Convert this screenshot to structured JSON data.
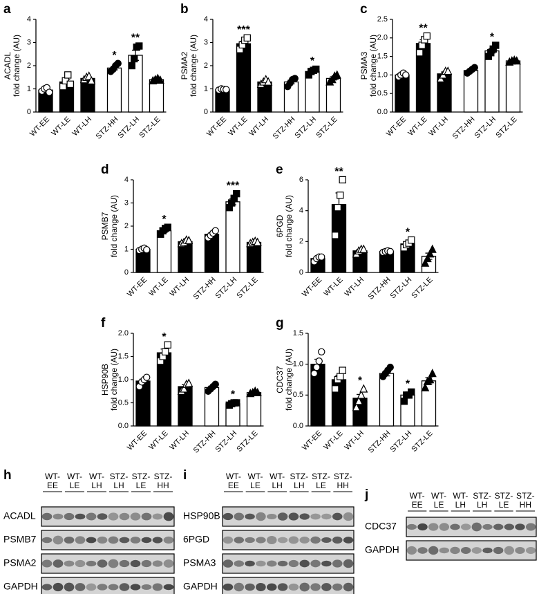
{
  "chart_data": [
    {
      "type": "bar",
      "panel": "a",
      "ylabel": [
        "ACADL",
        "fold change (AU)"
      ],
      "categories": [
        "WT-EE",
        "WT-LE",
        "WT-LH",
        "STZ-HH",
        "STZ-LH",
        "STZ-LE"
      ],
      "colors": [
        "#000000",
        "#000000",
        "#000000",
        "#ffffff",
        "#ffffff",
        "#ffffff"
      ],
      "values": [
        0.95,
        1.3,
        1.45,
        1.9,
        2.45,
        1.4
      ],
      "errors": [
        0.05,
        0.11,
        0.05,
        0.08,
        0.22,
        0.02
      ],
      "points": [
        [
          0.9,
          1.0,
          1.05,
          0.85
        ],
        [
          1.1,
          1.35,
          1.6,
          1.2
        ],
        [
          1.4,
          1.5,
          1.55,
          1.35
        ],
        [
          1.75,
          1.85,
          2.0,
          2.1
        ],
        [
          2.0,
          2.3,
          2.8,
          2.85
        ],
        [
          1.35,
          1.4,
          1.45,
          1.38
        ]
      ],
      "stars": [
        null,
        null,
        null,
        "*",
        "**",
        null
      ],
      "ylim": [
        0,
        4
      ],
      "yticks": [
        0,
        1,
        2,
        3,
        4
      ]
    },
    {
      "type": "bar",
      "panel": "b",
      "ylabel": [
        "PSMA2",
        "fold change (AU)"
      ],
      "categories": [
        "WT-EE",
        "WT-LE",
        "WT-LH",
        "STZ-HH",
        "STZ-LH",
        "STZ-LE"
      ],
      "colors": [
        "#000000",
        "#000000",
        "#000000",
        "#ffffff",
        "#ffffff",
        "#ffffff"
      ],
      "values": [
        0.97,
        2.95,
        1.3,
        1.3,
        1.75,
        1.45
      ],
      "errors": [
        0.02,
        0.11,
        0.04,
        0.08,
        0.05,
        0.07
      ],
      "points": [
        [
          0.95,
          1.0,
          0.98,
          0.97
        ],
        [
          2.7,
          2.9,
          3.1,
          3.2
        ],
        [
          1.2,
          1.3,
          1.4,
          1.3
        ],
        [
          1.1,
          1.25,
          1.4,
          1.45
        ],
        [
          1.6,
          1.75,
          1.8,
          1.85
        ],
        [
          1.3,
          1.4,
          1.55,
          1.6
        ]
      ],
      "stars": [
        null,
        "***",
        null,
        null,
        "*",
        null
      ],
      "ylim": [
        0,
        4
      ],
      "yticks": [
        0,
        1,
        2,
        3,
        4
      ]
    },
    {
      "type": "bar",
      "panel": "c",
      "ylabel": [
        "PSMA3",
        "fold change (AU)"
      ],
      "categories": [
        "WT-EE",
        "WT-LE",
        "WT-LH",
        "STZ-HH",
        "STZ-LH",
        "STZ-LE"
      ],
      "colors": [
        "#000000",
        "#000000",
        "#000000",
        "#ffffff",
        "#ffffff",
        "#ffffff"
      ],
      "values": [
        1.0,
        1.85,
        1.03,
        1.12,
        1.65,
        1.38
      ],
      "errors": [
        0.02,
        0.1,
        0.05,
        0.03,
        0.06,
        0.01
      ],
      "points": [
        [
          0.95,
          1.0,
          1.05,
          1.0
        ],
        [
          1.6,
          1.8,
          1.95,
          2.05
        ],
        [
          0.9,
          1.0,
          1.1,
          1.1
        ],
        [
          1.05,
          1.1,
          1.15,
          1.2
        ],
        [
          1.5,
          1.6,
          1.7,
          1.8
        ],
        [
          1.35,
          1.38,
          1.4,
          1.38
        ]
      ],
      "stars": [
        null,
        "**",
        null,
        null,
        "*",
        null
      ],
      "ylim": [
        0,
        2.5
      ],
      "yticks": [
        {
          "value": 0,
          "label": "0.0"
        },
        0.5,
        {
          "value": 1,
          "label": "1.0"
        },
        1.5,
        {
          "value": 2,
          "label": "2.0"
        },
        2.5
      ]
    },
    {
      "type": "bar",
      "panel": "d",
      "ylabel": [
        "PSMB7",
        "fold change (AU)"
      ],
      "categories": [
        "WT-EE",
        "WT-LE",
        "WT-LH",
        "STZ-HH",
        "STZ-LH",
        "STZ-LE"
      ],
      "colors": [
        "#000000",
        "#ffffff",
        "#000000",
        "#000000",
        "#ffffff",
        "#000000"
      ],
      "values": [
        1.0,
        1.8,
        1.33,
        1.65,
        3.05,
        1.3
      ],
      "errors": [
        0.02,
        0.07,
        0.04,
        0.06,
        0.13,
        0.02
      ],
      "points": [
        [
          0.95,
          1.0,
          1.05,
          0.98
        ],
        [
          1.65,
          1.8,
          1.9,
          1.95
        ],
        [
          1.25,
          1.3,
          1.4,
          1.38
        ],
        [
          1.5,
          1.6,
          1.7,
          1.8
        ],
        [
          2.8,
          3.0,
          3.2,
          3.4
        ],
        [
          1.25,
          1.3,
          1.35,
          1.3
        ]
      ],
      "stars": [
        null,
        "*",
        null,
        null,
        "***",
        null
      ],
      "ylim": [
        0,
        4
      ],
      "yticks": [
        0,
        1,
        2,
        3,
        4
      ]
    },
    {
      "type": "bar",
      "panel": "e",
      "ylabel": [
        "6PGD",
        "fold change (AU)"
      ],
      "categories": [
        "WT-EE",
        "WT-LE",
        "WT-LH",
        "STZ-HH",
        "STZ-LH",
        "STZ-LE"
      ],
      "colors": [
        "#000000",
        "#000000",
        "#000000",
        "#000000",
        "#000000",
        "#ffffff"
      ],
      "values": [
        0.9,
        4.4,
        1.4,
        1.35,
        1.85,
        1.05
      ],
      "errors": [
        0.07,
        0.75,
        0.07,
        0.02,
        0.1,
        0.2
      ],
      "points": [
        [
          0.7,
          0.9,
          1.0,
          1.0
        ],
        [
          2.4,
          4.2,
          5.0,
          6.0
        ],
        [
          1.2,
          1.4,
          1.5,
          1.5
        ],
        [
          1.3,
          1.35,
          1.4,
          1.35
        ],
        [
          1.6,
          1.8,
          1.9,
          2.1
        ],
        [
          0.6,
          0.9,
          1.2,
          1.5
        ]
      ],
      "stars": [
        null,
        "**",
        null,
        null,
        "*",
        null
      ],
      "ylim": [
        0,
        6
      ],
      "yticks": [
        0,
        2,
        4,
        6
      ]
    },
    {
      "type": "bar",
      "panel": "f",
      "ylabel": [
        "HSP90B",
        "fold change (AU)"
      ],
      "categories": [
        "WT-EE",
        "WT-LE",
        "WT-LH",
        "STZ-HH",
        "STZ-LH",
        "STZ-LE"
      ],
      "colors": [
        "#000000",
        "#000000",
        "#000000",
        "#ffffff",
        "#ffffff",
        "#ffffff"
      ],
      "values": [
        0.97,
        1.58,
        0.85,
        0.83,
        0.48,
        0.72
      ],
      "errors": [
        0.04,
        0.08,
        0.04,
        0.03,
        0.01,
        0.01
      ],
      "points": [
        [
          0.85,
          0.95,
          1.0,
          1.05
        ],
        [
          1.4,
          1.5,
          1.6,
          1.75
        ],
        [
          0.75,
          0.8,
          0.9,
          0.92
        ],
        [
          0.75,
          0.8,
          0.85,
          0.9
        ],
        [
          0.45,
          0.48,
          0.5,
          0.5
        ],
        [
          0.7,
          0.72,
          0.75,
          0.72
        ]
      ],
      "stars": [
        null,
        "*",
        null,
        null,
        "*",
        null
      ],
      "ylim": [
        0,
        2
      ],
      "yticks": [
        {
          "value": 0,
          "label": "0.0"
        },
        0.5,
        {
          "value": 1,
          "label": "1.0"
        },
        1.5,
        {
          "value": 2,
          "label": "2.0"
        }
      ]
    },
    {
      "type": "bar",
      "panel": "g",
      "ylabel": [
        "CDC37",
        "fold change (AU)"
      ],
      "categories": [
        "WT-EE",
        "WT-LE",
        "WT-LH",
        "STZ-HH",
        "STZ-LH",
        "STZ-LE"
      ],
      "colors": [
        "#000000",
        "#000000",
        "#000000",
        "#ffffff",
        "#ffffff",
        "#ffffff"
      ],
      "values": [
        1.0,
        0.75,
        0.45,
        0.85,
        0.5,
        0.73
      ],
      "errors": [
        0.08,
        0.07,
        0.06,
        0.04,
        0.03,
        0.05
      ],
      "points": [
        [
          0.85,
          0.95,
          1.05,
          1.2
        ],
        [
          0.6,
          0.75,
          0.8,
          0.9
        ],
        [
          0.3,
          0.4,
          0.5,
          0.6
        ],
        [
          0.8,
          0.85,
          0.9,
          0.95
        ],
        [
          0.4,
          0.5,
          0.5,
          0.55
        ],
        [
          0.62,
          0.72,
          0.75,
          0.85
        ]
      ],
      "stars": [
        null,
        null,
        "*",
        null,
        "*",
        null
      ],
      "ylim": [
        0,
        1.5
      ],
      "yticks": [
        {
          "value": 0,
          "label": "0.0"
        },
        0.5,
        {
          "value": 1,
          "label": "1.0"
        },
        1.5
      ]
    }
  ],
  "blots": [
    {
      "panel": "h",
      "lanes": [
        [
          "WT-",
          "EE"
        ],
        [
          "WT-",
          "LE"
        ],
        [
          "WT-",
          "LH"
        ],
        [
          "STZ-",
          "LH"
        ],
        [
          "STZ-",
          "LE"
        ],
        [
          "STZ-",
          "HH"
        ]
      ],
      "rows": [
        "ACADL",
        "PSMB7",
        "PSMA2",
        "GAPDH"
      ]
    },
    {
      "panel": "i",
      "lanes": [
        [
          "WT-",
          "EE"
        ],
        [
          "WT-",
          "LE"
        ],
        [
          "WT-",
          "LH"
        ],
        [
          "STZ-",
          "LH"
        ],
        [
          "STZ-",
          "LE"
        ],
        [
          "STZ-",
          "HH"
        ]
      ],
      "rows": [
        "HSP90B",
        "6PGD",
        "PSMA3",
        "GAPDH"
      ]
    },
    {
      "panel": "j",
      "lanes": [
        [
          "WT-",
          "EE"
        ],
        [
          "WT-",
          "LE"
        ],
        [
          "WT-",
          "LH"
        ],
        [
          "STZ-",
          "LH"
        ],
        [
          "STZ-",
          "LE"
        ],
        [
          "STZ-",
          "HH"
        ]
      ],
      "rows": [
        "CDC37",
        "GAPDH"
      ]
    }
  ]
}
